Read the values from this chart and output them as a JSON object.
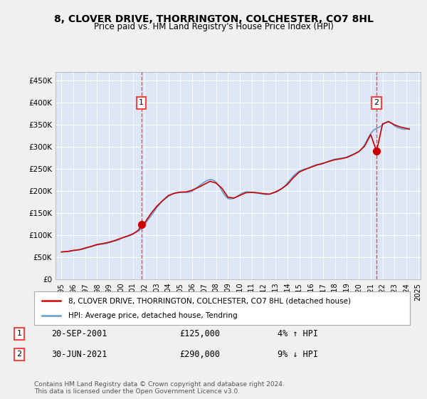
{
  "title": "8, CLOVER DRIVE, THORRINGTON, COLCHESTER, CO7 8HL",
  "subtitle": "Price paid vs. HM Land Registry's House Price Index (HPI)",
  "background_color": "#e8eef7",
  "plot_bg_color": "#dce6f5",
  "legend_label_red": "8, CLOVER DRIVE, THORRINGTON, COLCHESTER, CO7 8HL (detached house)",
  "legend_label_blue": "HPI: Average price, detached house, Tendring",
  "annotation1_label": "1",
  "annotation1_date": "20-SEP-2001",
  "annotation1_price": "£125,000",
  "annotation1_hpi": "4% ↑ HPI",
  "annotation2_label": "2",
  "annotation2_date": "30-JUN-2021",
  "annotation2_price": "£290,000",
  "annotation2_hpi": "9% ↓ HPI",
  "footer": "Contains HM Land Registry data © Crown copyright and database right 2024.\nThis data is licensed under the Open Government Licence v3.0.",
  "ylim": [
    0,
    470000
  ],
  "yticks": [
    0,
    50000,
    100000,
    150000,
    200000,
    250000,
    300000,
    350000,
    400000,
    450000
  ],
  "red_color": "#cc0000",
  "blue_color": "#6699cc",
  "dashed_red": "#ff4444",
  "marker1_x": 2001.72,
  "marker1_y": 125000,
  "marker2_x": 2021.5,
  "marker2_y": 290000,
  "hpi_years": [
    1995,
    1995.25,
    1995.5,
    1995.75,
    1996,
    1996.25,
    1996.5,
    1996.75,
    1997,
    1997.25,
    1997.5,
    1997.75,
    1998,
    1998.25,
    1998.5,
    1998.75,
    1999,
    1999.25,
    1999.5,
    1999.75,
    2000,
    2000.25,
    2000.5,
    2000.75,
    2001,
    2001.25,
    2001.5,
    2001.75,
    2002,
    2002.25,
    2002.5,
    2002.75,
    2003,
    2003.25,
    2003.5,
    2003.75,
    2004,
    2004.25,
    2004.5,
    2004.75,
    2005,
    2005.25,
    2005.5,
    2005.75,
    2006,
    2006.25,
    2006.5,
    2006.75,
    2007,
    2007.25,
    2007.5,
    2007.75,
    2008,
    2008.25,
    2008.5,
    2008.75,
    2009,
    2009.25,
    2009.5,
    2009.75,
    2010,
    2010.25,
    2010.5,
    2010.75,
    2011,
    2011.25,
    2011.5,
    2011.75,
    2012,
    2012.25,
    2012.5,
    2012.75,
    2013,
    2013.25,
    2013.5,
    2013.75,
    2014,
    2014.25,
    2014.5,
    2014.75,
    2015,
    2015.25,
    2015.5,
    2015.75,
    2016,
    2016.25,
    2016.5,
    2016.75,
    2017,
    2017.25,
    2017.5,
    2017.75,
    2018,
    2018.25,
    2018.5,
    2018.75,
    2019,
    2019.25,
    2019.5,
    2019.75,
    2020,
    2020.25,
    2020.5,
    2020.75,
    2021,
    2021.25,
    2021.5,
    2021.75,
    2022,
    2022.25,
    2022.5,
    2022.75,
    2023,
    2023.25,
    2023.5,
    2023.75,
    2024,
    2024.25
  ],
  "hpi_values": [
    62000,
    62500,
    63000,
    63500,
    65000,
    66000,
    67000,
    68000,
    70000,
    72000,
    74000,
    76000,
    78000,
    79000,
    80000,
    81000,
    83000,
    85000,
    87000,
    89000,
    92000,
    95000,
    97000,
    99000,
    102000,
    106000,
    110000,
    116000,
    124000,
    134000,
    143000,
    152000,
    162000,
    170000,
    178000,
    183000,
    188000,
    192000,
    195000,
    196000,
    197000,
    197000,
    197000,
    197500,
    200000,
    205000,
    210000,
    215000,
    220000,
    224000,
    226000,
    225000,
    220000,
    212000,
    200000,
    190000,
    183000,
    182000,
    184000,
    187000,
    192000,
    196000,
    198000,
    198000,
    197000,
    196000,
    195000,
    194000,
    193000,
    192000,
    193000,
    195000,
    197000,
    200000,
    205000,
    210000,
    218000,
    226000,
    234000,
    240000,
    245000,
    248000,
    250000,
    252000,
    255000,
    258000,
    260000,
    260000,
    262000,
    265000,
    268000,
    270000,
    272000,
    273000,
    274000,
    275000,
    277000,
    280000,
    283000,
    286000,
    290000,
    295000,
    305000,
    318000,
    330000,
    338000,
    342000,
    345000,
    350000,
    355000,
    358000,
    354000,
    348000,
    344000,
    342000,
    340000,
    340000,
    342000
  ],
  "red_years": [
    1995,
    1995.5,
    1996,
    1996.5,
    1997,
    1997.5,
    1998,
    1998.5,
    1999,
    1999.5,
    2000,
    2000.5,
    2001,
    2001.25,
    2001.5,
    2001.72,
    2002,
    2002.5,
    2003,
    2003.5,
    2004,
    2004.5,
    2005,
    2005.5,
    2006,
    2006.5,
    2007,
    2007.5,
    2008,
    2008.5,
    2009,
    2009.5,
    2010,
    2010.5,
    2011,
    2011.5,
    2012,
    2012.5,
    2013,
    2013.5,
    2014,
    2014.5,
    2015,
    2015.5,
    2016,
    2016.5,
    2017,
    2017.5,
    2018,
    2018.5,
    2019,
    2019.5,
    2020,
    2020.5,
    2021,
    2021.5,
    2022,
    2022.5,
    2023,
    2023.5,
    2024,
    2024.25
  ],
  "red_values": [
    62000,
    63000,
    65500,
    67000,
    71000,
    74500,
    79000,
    81000,
    84000,
    88000,
    93000,
    97500,
    103000,
    107000,
    112000,
    125000,
    128000,
    148000,
    165000,
    178000,
    190000,
    195000,
    197500,
    198000,
    202000,
    208000,
    215000,
    222000,
    218000,
    206000,
    186000,
    184000,
    190000,
    196000,
    197000,
    196000,
    194000,
    193000,
    198000,
    205000,
    215000,
    230000,
    243000,
    249000,
    254000,
    259000,
    263000,
    267000,
    271000,
    273000,
    276000,
    282000,
    289000,
    302000,
    328000,
    290000,
    352000,
    357000,
    350000,
    345000,
    342000,
    340000
  ],
  "xtick_years": [
    1995,
    1996,
    1997,
    1998,
    1999,
    2000,
    2001,
    2002,
    2003,
    2004,
    2005,
    2006,
    2007,
    2008,
    2009,
    2010,
    2011,
    2012,
    2013,
    2014,
    2015,
    2016,
    2017,
    2018,
    2019,
    2020,
    2021,
    2022,
    2023,
    2024,
    2025
  ]
}
